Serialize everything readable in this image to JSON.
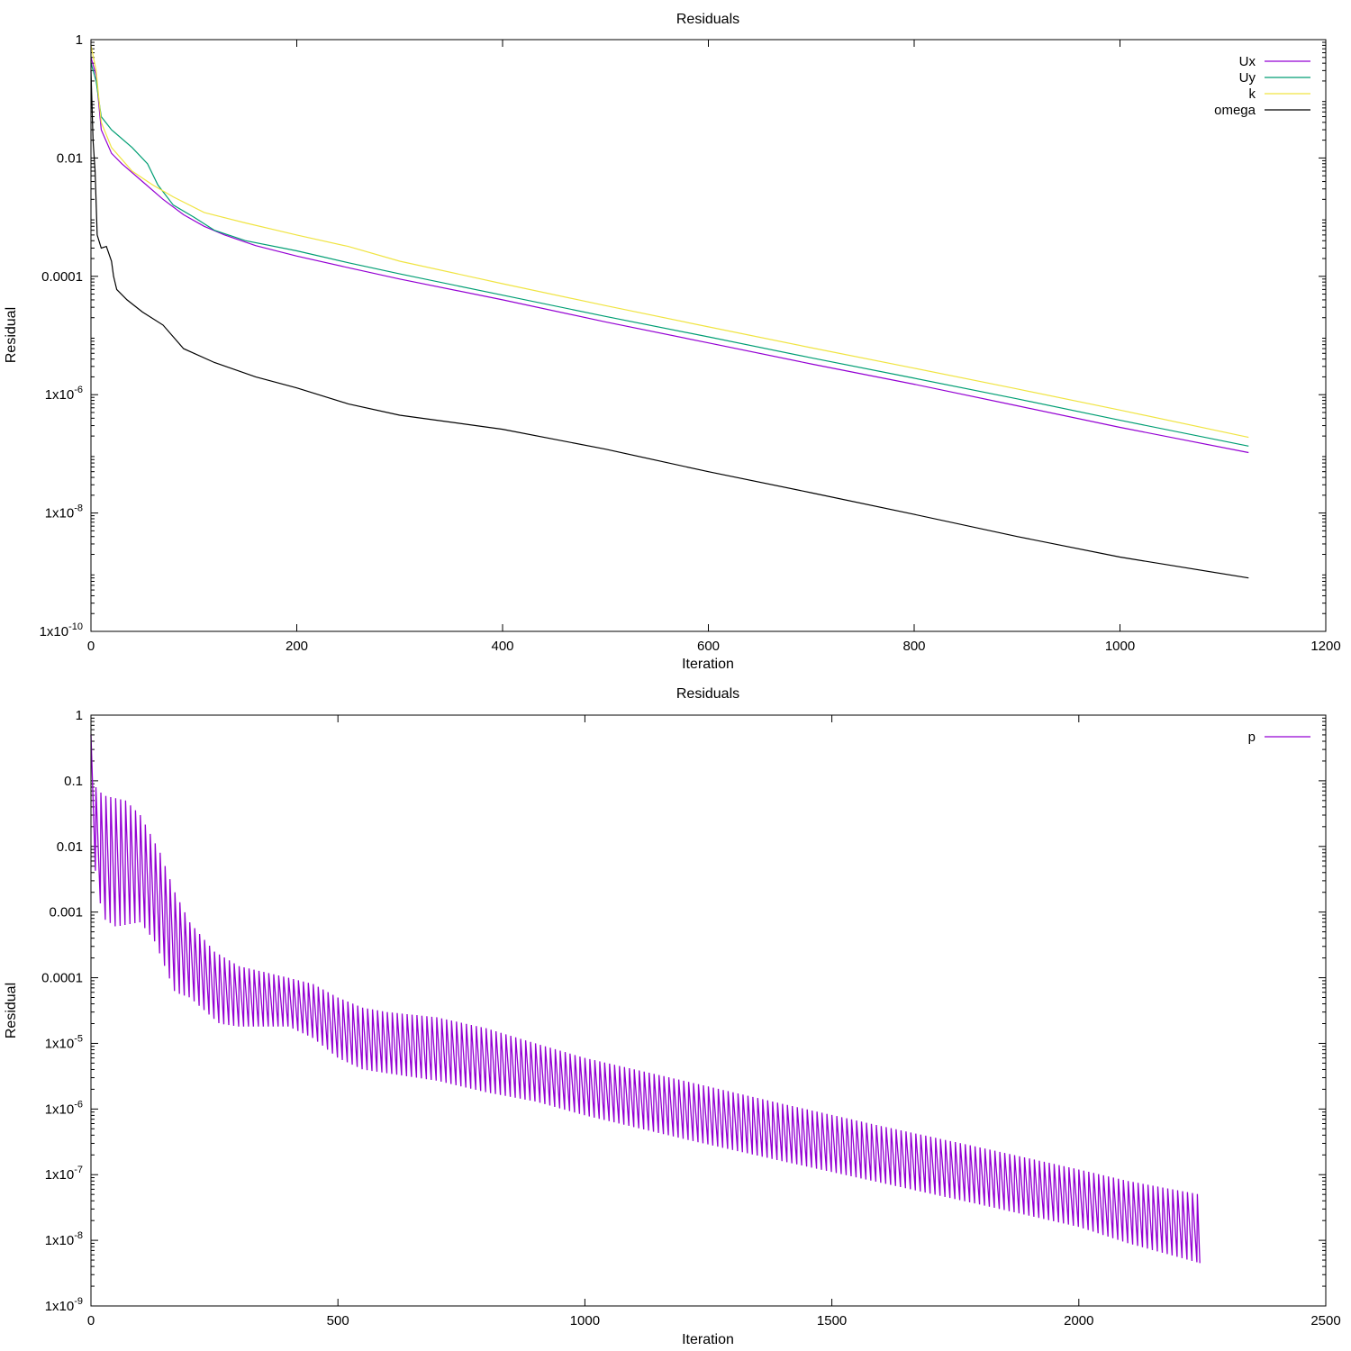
{
  "chart_data": [
    {
      "type": "line",
      "title": "Residuals",
      "xlabel": "Iteration",
      "ylabel": "Residual",
      "y_scale": "log",
      "xlim": [
        0,
        1200
      ],
      "ylim": [
        1e-10,
        1
      ],
      "legend_position": "top-right",
      "x_ticks": [
        0,
        200,
        400,
        600,
        800,
        1000,
        1200
      ],
      "x_tick_labels": [
        "0",
        "200",
        "400",
        "600",
        "800",
        "1000",
        "1200"
      ],
      "y_ticks": [
        1,
        0.01,
        0.0001,
        1e-06,
        1e-08,
        1e-10
      ],
      "y_tick_labels": [
        {
          "base": "1",
          "exp": ""
        },
        {
          "base": "0.01",
          "exp": ""
        },
        {
          "base": "0.0001",
          "exp": ""
        },
        {
          "base": "1x10",
          "exp": "-6"
        },
        {
          "base": "1x10",
          "exp": "-8"
        },
        {
          "base": "1x10",
          "exp": "-10"
        }
      ],
      "series": [
        {
          "name": "Ux",
          "color": "#9400d3",
          "points": [
            [
              0,
              0.5
            ],
            [
              5,
              0.25
            ],
            [
              10,
              0.03
            ],
            [
              20,
              0.012
            ],
            [
              30,
              0.008
            ],
            [
              50,
              0.004
            ],
            [
              70,
              0.002
            ],
            [
              90,
              0.0011
            ],
            [
              110,
              0.0007
            ],
            [
              130,
              0.0005
            ],
            [
              160,
              0.00033
            ],
            [
              200,
              0.00022
            ],
            [
              250,
              0.00014
            ],
            [
              300,
              9e-05
            ],
            [
              400,
              4e-05
            ],
            [
              500,
              1.7e-05
            ],
            [
              600,
              7.5e-06
            ],
            [
              700,
              3.3e-06
            ],
            [
              800,
              1.5e-06
            ],
            [
              900,
              6.5e-07
            ],
            [
              1000,
              2.8e-07
            ],
            [
              1125,
              1.05e-07
            ]
          ]
        },
        {
          "name": "Uy",
          "color": "#009e73",
          "points": [
            [
              0,
              0.4
            ],
            [
              5,
              0.2
            ],
            [
              10,
              0.05
            ],
            [
              20,
              0.03
            ],
            [
              40,
              0.015
            ],
            [
              55,
              0.008
            ],
            [
              65,
              0.0035
            ],
            [
              80,
              0.0016
            ],
            [
              100,
              0.001
            ],
            [
              120,
              0.0006
            ],
            [
              150,
              0.0004
            ],
            [
              200,
              0.00027
            ],
            [
              250,
              0.00017
            ],
            [
              300,
              0.00011
            ],
            [
              400,
              4.8e-05
            ],
            [
              500,
              2.1e-05
            ],
            [
              600,
              9.5e-06
            ],
            [
              700,
              4.2e-06
            ],
            [
              800,
              1.9e-06
            ],
            [
              900,
              8.5e-07
            ],
            [
              1000,
              3.7e-07
            ],
            [
              1125,
              1.35e-07
            ]
          ]
        },
        {
          "name": "k",
          "color": "#f0e442",
          "points": [
            [
              0,
              0.8
            ],
            [
              5,
              0.3
            ],
            [
              10,
              0.04
            ],
            [
              20,
              0.015
            ],
            [
              40,
              0.006
            ],
            [
              60,
              0.0035
            ],
            [
              80,
              0.0022
            ],
            [
              110,
              0.0012
            ],
            [
              150,
              0.0008
            ],
            [
              200,
              0.0005
            ],
            [
              250,
              0.00032
            ],
            [
              300,
              0.00018
            ],
            [
              400,
              7.5e-05
            ],
            [
              500,
              3.2e-05
            ],
            [
              600,
              1.4e-05
            ],
            [
              700,
              6.2e-06
            ],
            [
              800,
              2.8e-06
            ],
            [
              900,
              1.25e-06
            ],
            [
              1000,
              5.5e-07
            ],
            [
              1125,
              1.9e-07
            ]
          ]
        },
        {
          "name": "omega",
          "color": "#000000",
          "points": [
            [
              0,
              0.3
            ],
            [
              2,
              0.02
            ],
            [
              4,
              0.006
            ],
            [
              6,
              0.0005
            ],
            [
              10,
              0.0003
            ],
            [
              15,
              0.00032
            ],
            [
              20,
              0.00018
            ],
            [
              22,
              0.0001
            ],
            [
              25,
              6e-05
            ],
            [
              35,
              4e-05
            ],
            [
              50,
              2.5e-05
            ],
            [
              70,
              1.5e-05
            ],
            [
              90,
              6e-06
            ],
            [
              120,
              3.5e-06
            ],
            [
              160,
              2e-06
            ],
            [
              200,
              1.3e-06
            ],
            [
              250,
              7e-07
            ],
            [
              300,
              4.5e-07
            ],
            [
              400,
              2.6e-07
            ],
            [
              500,
              1.2e-07
            ],
            [
              600,
              5e-08
            ],
            [
              700,
              2.2e-08
            ],
            [
              800,
              9.5e-09
            ],
            [
              900,
              4e-09
            ],
            [
              1000,
              1.8e-09
            ],
            [
              1125,
              8e-10
            ]
          ]
        }
      ]
    },
    {
      "type": "line",
      "title": "Residuals",
      "xlabel": "Iteration",
      "ylabel": "Residual",
      "y_scale": "log",
      "xlim": [
        0,
        2500
      ],
      "ylim": [
        1e-09,
        1
      ],
      "legend_position": "top-right",
      "x_ticks": [
        0,
        500,
        1000,
        1500,
        2000,
        2500
      ],
      "x_tick_labels": [
        "0",
        "500",
        "1000",
        "1500",
        "2000",
        "2500"
      ],
      "y_ticks": [
        1,
        0.1,
        0.01,
        0.001,
        0.0001,
        1e-05,
        1e-06,
        1e-07,
        1e-08,
        1e-09
      ],
      "y_tick_labels": [
        {
          "base": "1",
          "exp": ""
        },
        {
          "base": "0.1",
          "exp": ""
        },
        {
          "base": "0.01",
          "exp": ""
        },
        {
          "base": "0.001",
          "exp": ""
        },
        {
          "base": "0.0001",
          "exp": ""
        },
        {
          "base": "1x10",
          "exp": "-5"
        },
        {
          "base": "1x10",
          "exp": "-6"
        },
        {
          "base": "1x10",
          "exp": "-7"
        },
        {
          "base": "1x10",
          "exp": "-8"
        },
        {
          "base": "1x10",
          "exp": "-9"
        }
      ],
      "series": [
        {
          "name": "p",
          "color": "#9400d3",
          "cycle_length": 10,
          "x_max": 2245,
          "upper_envelope": [
            [
              0,
              0.5
            ],
            [
              10,
              0.08
            ],
            [
              25,
              0.06
            ],
            [
              70,
              0.05
            ],
            [
              100,
              0.03
            ],
            [
              140,
              0.008
            ],
            [
              170,
              0.002
            ],
            [
              200,
              0.0007
            ],
            [
              250,
              0.00025
            ],
            [
              300,
              0.00015
            ],
            [
              400,
              0.0001
            ],
            [
              450,
              8e-05
            ],
            [
              500,
              5e-05
            ],
            [
              550,
              3.5e-05
            ],
            [
              600,
              3e-05
            ],
            [
              700,
              2.5e-05
            ],
            [
              800,
              1.7e-05
            ],
            [
              900,
              1e-05
            ],
            [
              1000,
              6e-06
            ],
            [
              1200,
              2.7e-06
            ],
            [
              1400,
              1.2e-06
            ],
            [
              1600,
              5.5e-07
            ],
            [
              1800,
              2.6e-07
            ],
            [
              2000,
              1.2e-07
            ],
            [
              2100,
              8e-08
            ],
            [
              2245,
              5e-08
            ]
          ],
          "lower_envelope": [
            [
              0,
              0.1
            ],
            [
              10,
              0.003
            ],
            [
              25,
              0.0008
            ],
            [
              50,
              0.0006
            ],
            [
              100,
              0.0007
            ],
            [
              130,
              0.00035
            ],
            [
              170,
              6e-05
            ],
            [
              200,
              5e-05
            ],
            [
              260,
              2e-05
            ],
            [
              300,
              1.8e-05
            ],
            [
              400,
              1.8e-05
            ],
            [
              450,
              1.2e-05
            ],
            [
              500,
              6e-06
            ],
            [
              550,
              4e-06
            ],
            [
              600,
              3.5e-06
            ],
            [
              700,
              2.7e-06
            ],
            [
              800,
              1.8e-06
            ],
            [
              900,
              1.3e-06
            ],
            [
              1000,
              8e-07
            ],
            [
              1200,
              3.5e-07
            ],
            [
              1400,
              1.6e-07
            ],
            [
              1600,
              7.5e-08
            ],
            [
              1800,
              3.5e-08
            ],
            [
              2000,
              1.6e-08
            ],
            [
              2100,
              9e-09
            ],
            [
              2245,
              4.5e-09
            ]
          ]
        }
      ]
    }
  ]
}
